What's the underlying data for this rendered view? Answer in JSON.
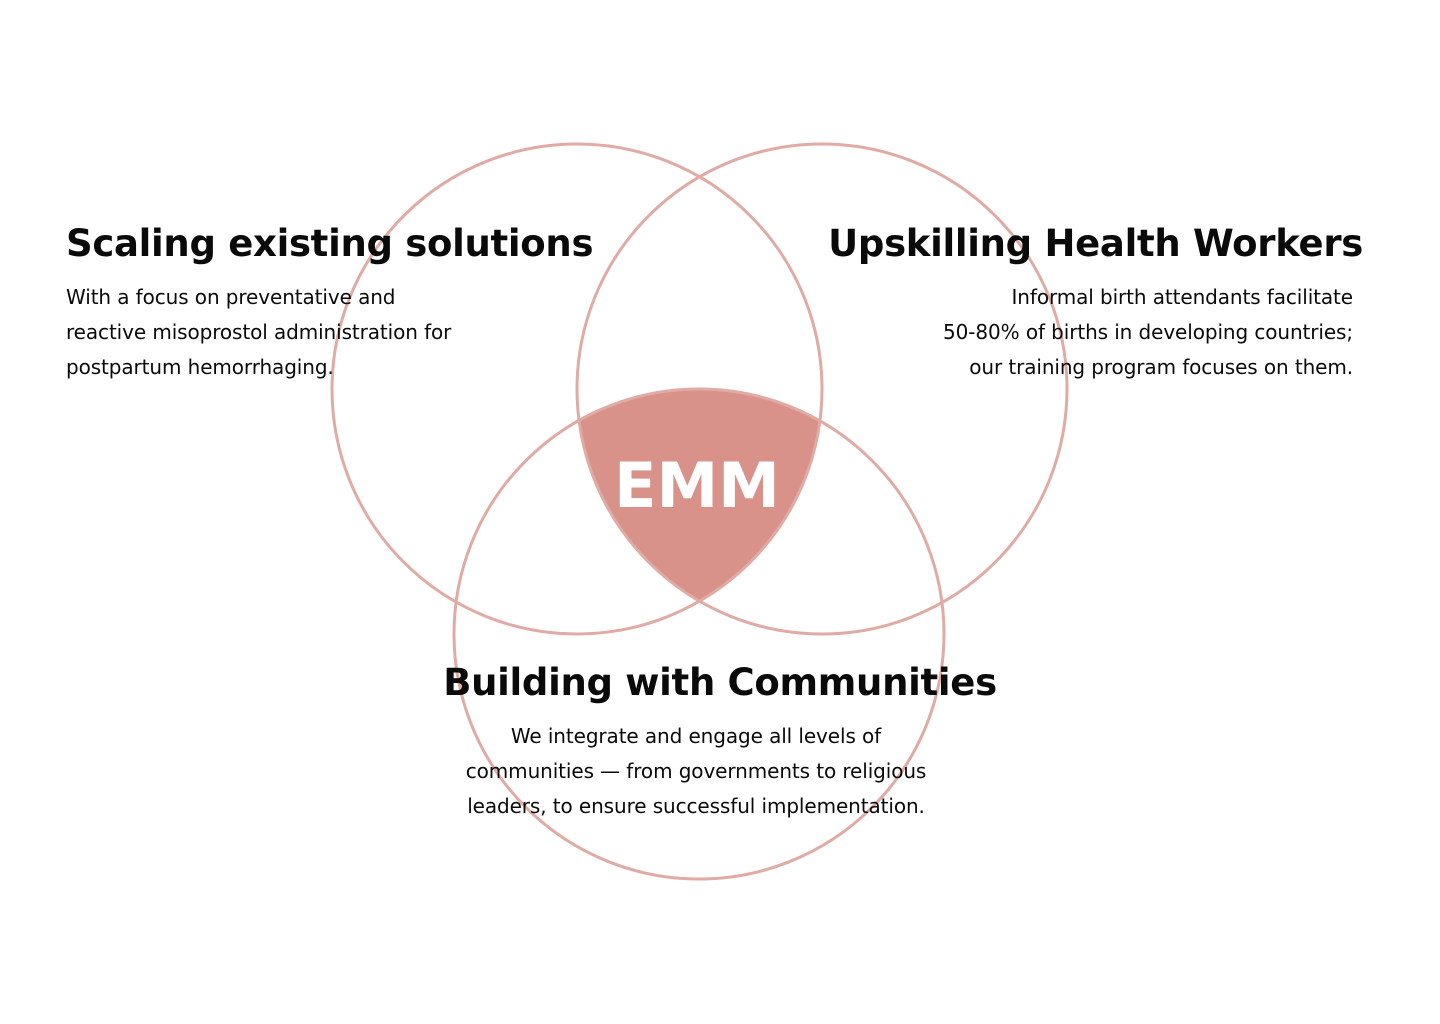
{
  "diagram": {
    "center_label": "EMM",
    "accent_color": "#d9928a",
    "circle_stroke_color": "#e0aba4",
    "sections": [
      {
        "id": "scaling",
        "title": "Scaling existing solutions",
        "description_lines": [
          "With a focus on preventative and",
          "reactive misoprostol administration for",
          "postpartum hemorrhaging."
        ]
      },
      {
        "id": "upskilling",
        "title": "Upskilling Health Workers",
        "description_lines": [
          "Informal birth attendants facilitate",
          "50-80% of births in developing countries;",
          "our training program focuses on them."
        ]
      },
      {
        "id": "building",
        "title": "Building with Communities",
        "description_lines": [
          "We integrate and engage all levels of",
          "communities — from governments to religious",
          "leaders, to ensure successful implementation."
        ]
      }
    ]
  }
}
